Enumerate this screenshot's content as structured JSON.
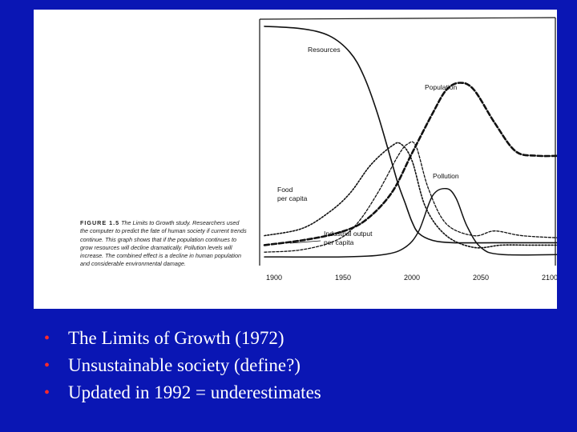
{
  "figure": {
    "label": "FIGURE 1.5",
    "caption": "The Limits to Growth study. Researchers used the computer to predict the fate of human society if current trends continue. This graph shows that if the population continues to grow resources will decline dramatically. Pollution levels will increase. The combined effect is a decline in human population and considerable environmental damage."
  },
  "chart_data": {
    "type": "line",
    "xlabel": "",
    "ylabel": "",
    "x_ticks": [
      "1900",
      "1950",
      "2000",
      "2050",
      "2100"
    ],
    "xlim": [
      1900,
      2110
    ],
    "ylim": [
      0,
      100
    ],
    "grid": false,
    "legend": "inline labels",
    "series": [
      {
        "name": "Resources",
        "style": "solid",
        "points": [
          [
            1893,
            99
          ],
          [
            1920,
            98
          ],
          [
            1940,
            95
          ],
          [
            1955,
            88
          ],
          [
            1965,
            78
          ],
          [
            1975,
            62
          ],
          [
            1985,
            42
          ],
          [
            1990,
            32
          ],
          [
            1995,
            24
          ],
          [
            2000,
            16
          ],
          [
            2005,
            11
          ],
          [
            2015,
            8
          ],
          [
            2030,
            7
          ],
          [
            2060,
            7
          ],
          [
            2110,
            7
          ]
        ]
      },
      {
        "name": "Population",
        "style": "dashed",
        "points": [
          [
            1893,
            6
          ],
          [
            1920,
            8
          ],
          [
            1945,
            11
          ],
          [
            1965,
            16
          ],
          [
            1985,
            28
          ],
          [
            2000,
            45
          ],
          [
            2015,
            62
          ],
          [
            2025,
            72
          ],
          [
            2035,
            75
          ],
          [
            2045,
            72
          ],
          [
            2060,
            58
          ],
          [
            2075,
            46
          ],
          [
            2090,
            44
          ],
          [
            2110,
            44
          ]
        ]
      },
      {
        "name": "Food per capita",
        "style": "dotted",
        "points": [
          [
            1893,
            10
          ],
          [
            1920,
            13
          ],
          [
            1940,
            20
          ],
          [
            1955,
            28
          ],
          [
            1970,
            40
          ],
          [
            1985,
            48
          ],
          [
            1992,
            49
          ],
          [
            2000,
            42
          ],
          [
            2010,
            22
          ],
          [
            2025,
            10
          ],
          [
            2045,
            5
          ],
          [
            2065,
            6
          ],
          [
            2085,
            6
          ],
          [
            2110,
            6
          ]
        ]
      },
      {
        "name": "Pollution",
        "style": "solid",
        "points": [
          [
            1893,
            1
          ],
          [
            1950,
            1
          ],
          [
            1980,
            2
          ],
          [
            1995,
            5
          ],
          [
            2005,
            12
          ],
          [
            2015,
            27
          ],
          [
            2025,
            30
          ],
          [
            2032,
            26
          ],
          [
            2040,
            14
          ],
          [
            2050,
            5
          ],
          [
            2065,
            2
          ],
          [
            2110,
            2
          ]
        ]
      },
      {
        "name": "Industrial output per capita",
        "style": "dotted",
        "points": [
          [
            1893,
            3
          ],
          [
            1920,
            4
          ],
          [
            1945,
            8
          ],
          [
            1960,
            15
          ],
          [
            1975,
            28
          ],
          [
            1990,
            44
          ],
          [
            1997,
            49
          ],
          [
            2003,
            48
          ],
          [
            2012,
            30
          ],
          [
            2025,
            15
          ],
          [
            2045,
            10
          ],
          [
            2060,
            12
          ],
          [
            2080,
            10
          ],
          [
            2110,
            9
          ]
        ]
      }
    ],
    "annotations": [
      "Resources",
      "Population",
      "Food",
      "per capita",
      "Pollution",
      "Industrial output",
      "per capita"
    ]
  },
  "bullets": [
    "The Limits of Growth (1972)",
    "Unsustainable society (define?)",
    "Updated in 1992 = underestimates"
  ],
  "colors": {
    "background": "#0a16b4",
    "bullet": "#ff2a2a",
    "text": "#ffffff"
  }
}
